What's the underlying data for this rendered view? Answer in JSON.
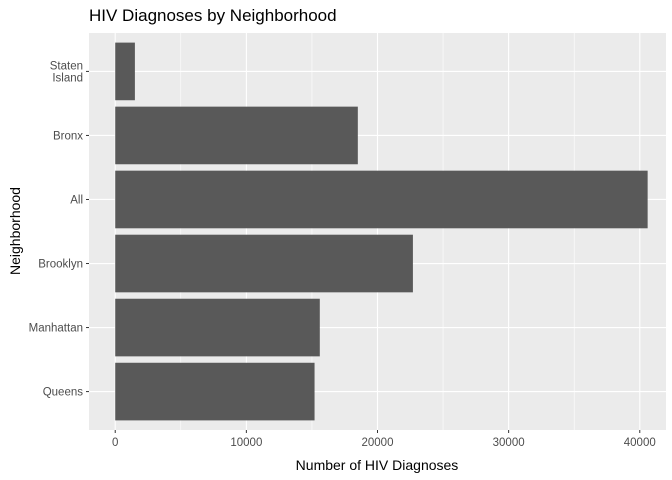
{
  "chart_data": {
    "type": "bar",
    "orientation": "horizontal",
    "title": "HIV Diagnoses by Neighborhood",
    "xlabel": "Number of HIV Diagnoses",
    "ylabel": "Neighborhood",
    "categories": [
      [
        "Staten",
        "Island"
      ],
      [
        "Bronx"
      ],
      [
        "All"
      ],
      [
        "Brooklyn"
      ],
      [
        "Manhattan"
      ],
      [
        "Queens"
      ]
    ],
    "values": [
      1500,
      18500,
      40600,
      22700,
      15600,
      15200
    ],
    "xlim": [
      -2000,
      42000
    ],
    "xticks": [
      0,
      10000,
      20000,
      30000,
      40000
    ],
    "grid": true,
    "colors": {
      "panel_background": "#ebebeb",
      "grid_major": "#ffffff",
      "bar_fill": "#595959"
    }
  }
}
